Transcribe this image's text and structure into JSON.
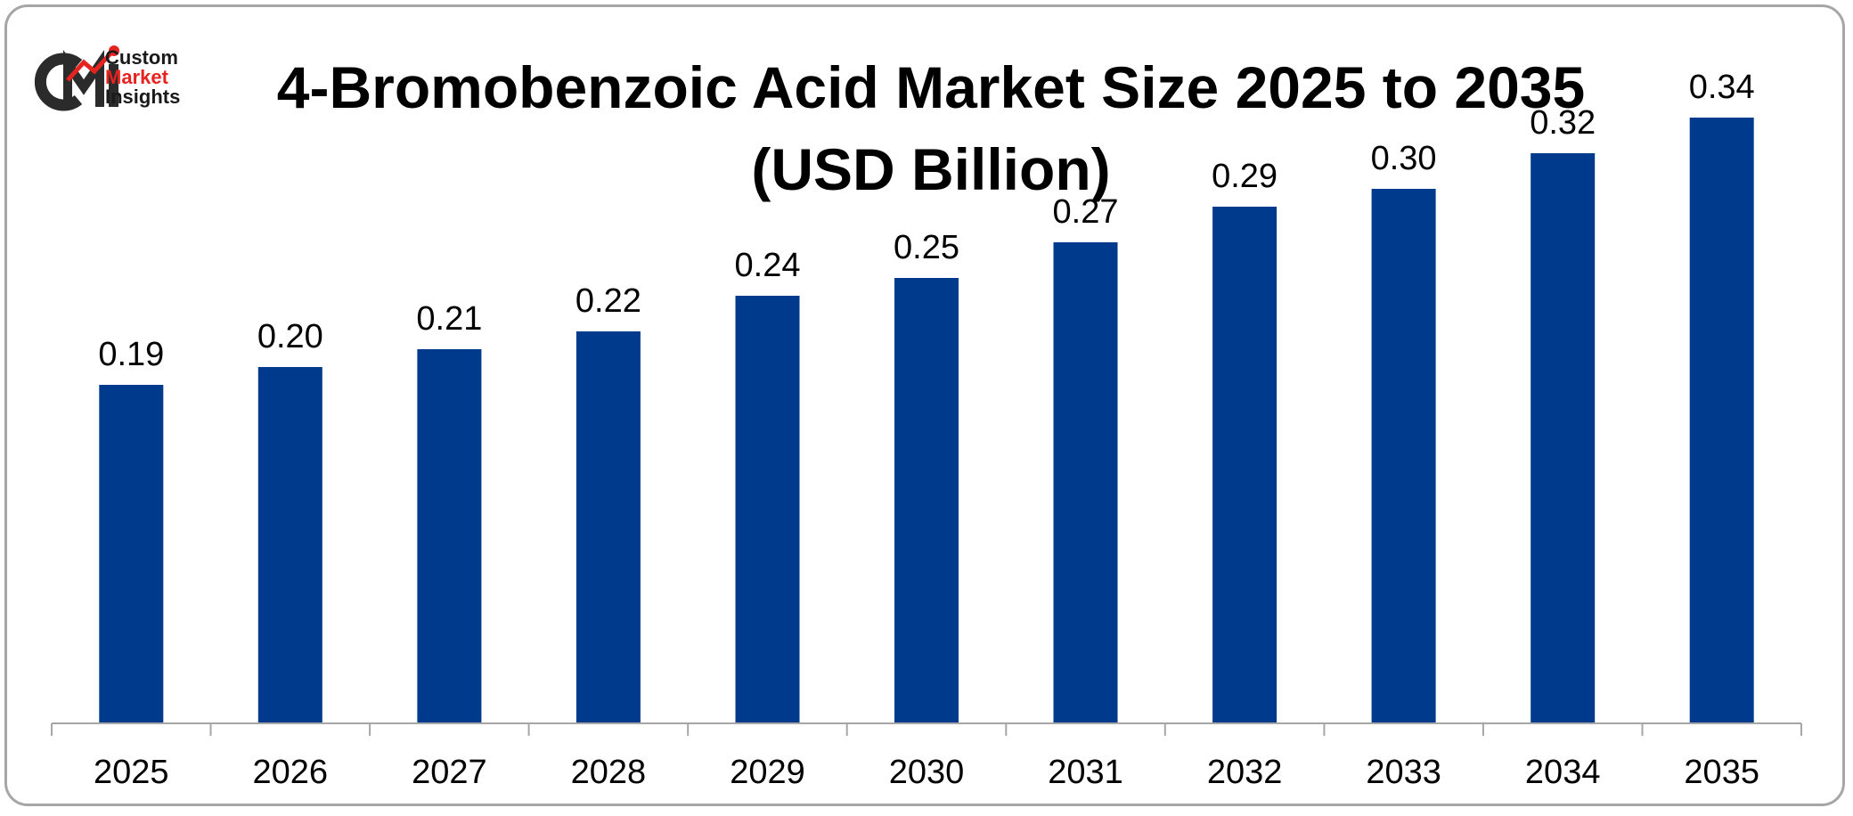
{
  "brand": {
    "logo_mark": "CMI",
    "line1": "Custom",
    "line2": "Market",
    "line3": "Insights",
    "dark_color": "#2b2b2b",
    "accent_color": "#e52420"
  },
  "chart_data": {
    "type": "bar",
    "title_line1": "4-Bromobenzoic Acid Market Size 2025 to 2035",
    "title_line2": "(USD Billion)",
    "categories": [
      "2025",
      "2026",
      "2027",
      "2028",
      "2029",
      "2030",
      "2031",
      "2032",
      "2033",
      "2034",
      "2035"
    ],
    "values": [
      0.19,
      0.2,
      0.21,
      0.22,
      0.24,
      0.25,
      0.27,
      0.29,
      0.3,
      0.32,
      0.34
    ],
    "value_labels": [
      "0.19",
      "0.20",
      "0.21",
      "0.22",
      "0.24",
      "0.25",
      "0.27",
      "0.29",
      "0.30",
      "0.32",
      "0.34"
    ],
    "xlabel": "",
    "ylabel": "",
    "ylim": [
      0,
      0.34
    ],
    "grid": false,
    "legend": "none",
    "bar_color": "#003a8c",
    "axis_color": "#a6a6a6"
  }
}
